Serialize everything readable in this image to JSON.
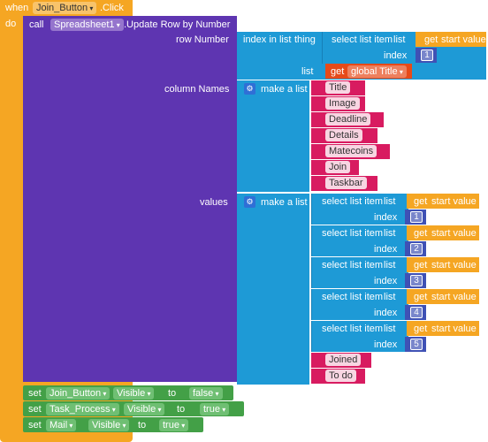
{
  "event": {
    "when": "when",
    "component": "Join_Button",
    "event_name": ".Click",
    "do": "do"
  },
  "call": {
    "label": "call",
    "component": "Spreadsheet1",
    "method": ".Update Row by Number"
  },
  "row_number": {
    "label": "row Number",
    "index_in_list": "index in list",
    "thing": "thing",
    "select_list_item": "select list item",
    "list": "list",
    "get": "get",
    "start_value": "start value",
    "index": "index",
    "index_value": "1",
    "list2": "list",
    "global_var": "global Title"
  },
  "column_names": {
    "label": "column Names",
    "make_a_list": "make a list",
    "items": [
      "Title",
      "Image",
      "Deadline",
      "Details",
      "Matecoins",
      "Join",
      "Taskbar"
    ]
  },
  "values": {
    "label": "values",
    "make_a_list": "make a list",
    "select_list_item": "select list item",
    "list": "list",
    "get": "get",
    "start_value": "start value",
    "index": "index",
    "indices": [
      "1",
      "2",
      "3",
      "4",
      "5"
    ],
    "texts": [
      "Joined",
      "To do"
    ]
  },
  "setters": [
    {
      "set": "set",
      "component": "Join_Button",
      "property": "Visible",
      "to": "to",
      "value": "false"
    },
    {
      "set": "set",
      "component": "Task_Process",
      "property": "Visible",
      "to": "to",
      "value": "true"
    },
    {
      "set": "set",
      "component": "Mail",
      "property": "Visible",
      "to": "to",
      "value": "true"
    }
  ]
}
